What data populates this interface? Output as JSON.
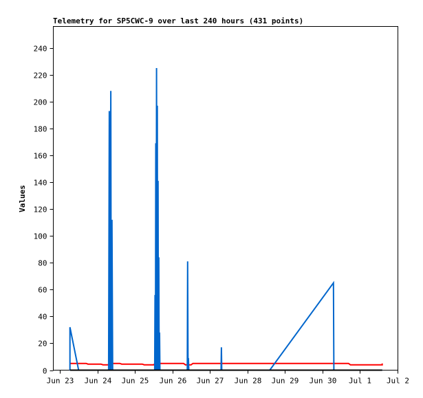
{
  "chart_data": {
    "type": "line",
    "title": "Telemetry for SP5CWC-9 over last 240 hours (431 points)",
    "ylabel": "Values",
    "xlabel": "",
    "ylim": [
      0,
      256
    ],
    "xlim": [
      0,
      10
    ],
    "x_ticks": [
      {
        "value": 0,
        "label": "Jun 23"
      },
      {
        "value": 1,
        "label": "Jun 24"
      },
      {
        "value": 2,
        "label": "Jun 25"
      },
      {
        "value": 3,
        "label": "Jun 26"
      },
      {
        "value": 4,
        "label": "Jun 27"
      },
      {
        "value": 5,
        "label": "Jun 28"
      },
      {
        "value": 6,
        "label": "Jun 29"
      },
      {
        "value": 7,
        "label": "Jun 30"
      },
      {
        "value": 8,
        "label": "Jul 1"
      },
      {
        "value": 9,
        "label": "Jul 2"
      }
    ],
    "y_ticks": [
      0,
      20,
      40,
      60,
      80,
      100,
      120,
      140,
      160,
      180,
      200,
      220,
      240
    ],
    "grid": false,
    "series": [
      {
        "color": "#ff0000",
        "points": [
          [
            0.27,
            5
          ],
          [
            0.7,
            5
          ],
          [
            0.75,
            4.5
          ],
          [
            1.1,
            4.5
          ],
          [
            1.15,
            4
          ],
          [
            1.3,
            4
          ],
          [
            1.35,
            5
          ],
          [
            1.6,
            5
          ],
          [
            1.65,
            4.5
          ],
          [
            2.2,
            4.5
          ],
          [
            2.25,
            4
          ],
          [
            2.5,
            4
          ],
          [
            2.55,
            5
          ],
          [
            3.3,
            5
          ],
          [
            3.35,
            4
          ],
          [
            3.5,
            4
          ],
          [
            3.55,
            5
          ],
          [
            7.7,
            5
          ],
          [
            7.75,
            4
          ],
          [
            8.6,
            4
          ],
          [
            8.6,
            5
          ]
        ]
      },
      {
        "color": "#0066cc",
        "points": [
          [
            0.27,
            0
          ],
          [
            0.27,
            32
          ],
          [
            0.5,
            0
          ],
          [
            1.3,
            0
          ],
          [
            1.32,
            193
          ],
          [
            1.34,
            0
          ],
          [
            1.36,
            208
          ],
          [
            1.37,
            0
          ],
          [
            1.39,
            112
          ],
          [
            1.41,
            0
          ],
          [
            2.53,
            0
          ],
          [
            2.54,
            56
          ],
          [
            2.55,
            0
          ],
          [
            2.56,
            169
          ],
          [
            2.57,
            0
          ],
          [
            2.58,
            225
          ],
          [
            2.59,
            0
          ],
          [
            2.6,
            197
          ],
          [
            2.61,
            0
          ],
          [
            2.62,
            141
          ],
          [
            2.63,
            0
          ],
          [
            2.64,
            84
          ],
          [
            2.65,
            0
          ],
          [
            2.66,
            28
          ],
          [
            2.67,
            0
          ],
          [
            3.4,
            0
          ],
          [
            3.41,
            81
          ],
          [
            3.42,
            0
          ],
          [
            3.43,
            9
          ],
          [
            3.44,
            0
          ],
          [
            4.3,
            0
          ],
          [
            4.31,
            17
          ],
          [
            4.32,
            0
          ],
          [
            5.6,
            0
          ],
          [
            7.3,
            65
          ],
          [
            7.31,
            0
          ],
          [
            8.6,
            0
          ]
        ]
      },
      {
        "color": "#000000",
        "points": [
          [
            0.27,
            0
          ],
          [
            8.6,
            0
          ]
        ]
      }
    ]
  }
}
